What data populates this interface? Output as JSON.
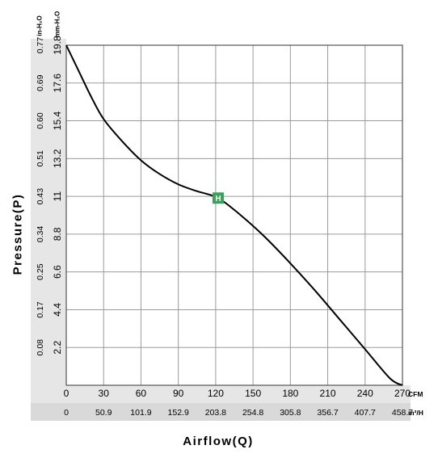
{
  "chart_data": {
    "type": "line",
    "ylabel": "Pressure(P)",
    "xlabel": "Airflow(Q)",
    "x_unit_primary": "CFM",
    "x_unit_secondary": "m³/H",
    "y_unit_primary": "mm-H₂O",
    "y_unit_secondary": "in-H₂O",
    "xlim": [
      0,
      270
    ],
    "ylim": [
      0,
      19.8
    ],
    "grid": true,
    "x_ticks_primary": [
      "0",
      "30",
      "60",
      "90",
      "120",
      "150",
      "180",
      "210",
      "240",
      "270"
    ],
    "x_ticks_secondary": [
      "0",
      "50.9",
      "101.9",
      "152.9",
      "203.8",
      "254.8",
      "305.8",
      "356.7",
      "407.7",
      "458.7"
    ],
    "y_ticks_primary": [
      "2.2",
      "4.4",
      "6.6",
      "8.8",
      "11",
      "13.2",
      "15.4",
      "17.6",
      "19.8"
    ],
    "y_ticks_secondary": [
      "0.08",
      "0.17",
      "0.25",
      "0.34",
      "0.43",
      "0.51",
      "0.60",
      "0.69",
      "0.77"
    ],
    "series": [
      {
        "x": [
          0,
          10,
          20,
          30,
          45,
          60,
          75,
          90,
          105,
          115,
          122,
          130,
          145,
          160,
          180,
          200,
          220,
          240,
          260,
          270
        ],
        "y": [
          19.8,
          18.3,
          16.8,
          15.5,
          14.2,
          13.1,
          12.3,
          11.7,
          11.3,
          11.1,
          10.9,
          10.5,
          9.6,
          8.6,
          7.1,
          5.5,
          3.8,
          2.1,
          0.4,
          0
        ]
      }
    ],
    "annotations": [
      {
        "label": "H",
        "x": 122,
        "y": 10.9,
        "color": "#3aa35a"
      }
    ],
    "colors": {
      "curve": "#000000",
      "grid": "#9a9a9a",
      "axis_band": "#e6e6e6"
    }
  }
}
